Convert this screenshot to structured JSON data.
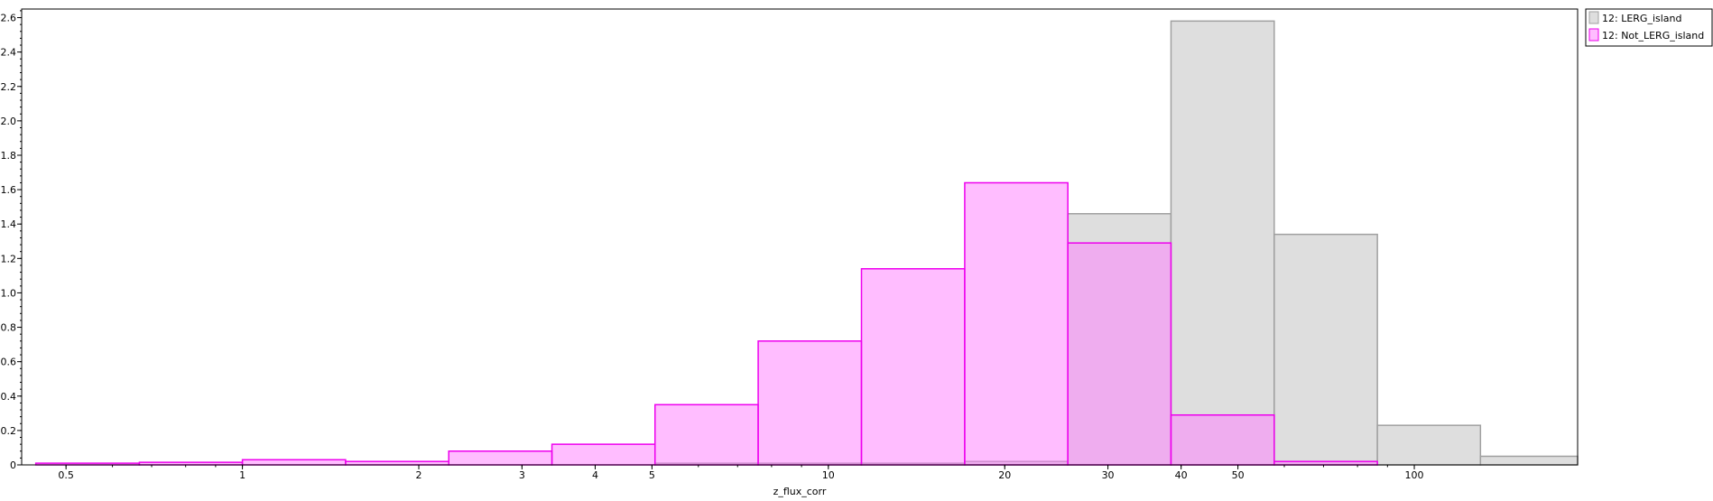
{
  "chart_data": {
    "type": "histogram",
    "xlabel": "z_flux_corr",
    "ylabel": "",
    "xscale": "log",
    "xlim": [
      0.42,
      190
    ],
    "ylim": [
      0,
      2.65
    ],
    "x_ticks_major": [
      0.5,
      1,
      2,
      3,
      4,
      5,
      10,
      20,
      30,
      40,
      50,
      100
    ],
    "x_tick_labels": [
      "0.5",
      "1",
      "2",
      "3",
      "4",
      "5",
      "10",
      "20",
      "30",
      "40",
      "50",
      "100"
    ],
    "y_ticks": [
      0,
      0.2,
      0.4,
      0.6,
      0.8,
      1.0,
      1.2,
      1.4,
      1.6,
      1.8,
      2.0,
      2.2,
      2.4,
      2.6
    ],
    "y_tick_labels": [
      "0",
      "0.2",
      "0.4",
      "0.6",
      "0.8",
      "1.0",
      "1.2",
      "1.4",
      "1.6",
      "1.8",
      "2.0",
      "2.2",
      "2.4",
      "2.6"
    ],
    "bin_edges": [
      0.444,
      0.667,
      1.0,
      1.5,
      2.25,
      3.375,
      5.06,
      7.59,
      11.39,
      17.09,
      25.63,
      38.44,
      57.67,
      86.5,
      129.7,
      194.6
    ],
    "legend_position": "right-outside-top",
    "series": [
      {
        "name": "12: LERG_island",
        "fill": "#dedede",
        "stroke": "#a0a0a0",
        "values": [
          0,
          0,
          0,
          0,
          0,
          0,
          0.01,
          0.01,
          0.01,
          0.02,
          1.46,
          2.58,
          1.34,
          0.23,
          0.05
        ]
      },
      {
        "name": "12: Not_LERG_island",
        "fill": "#ff7cff",
        "fill_opacity": 0.5,
        "stroke": "#ee00ee",
        "values": [
          0.01,
          0.015,
          0.03,
          0.02,
          0.08,
          0.12,
          0.35,
          0.72,
          1.14,
          1.64,
          1.29,
          0.29,
          0.02,
          0,
          0
        ]
      }
    ]
  }
}
